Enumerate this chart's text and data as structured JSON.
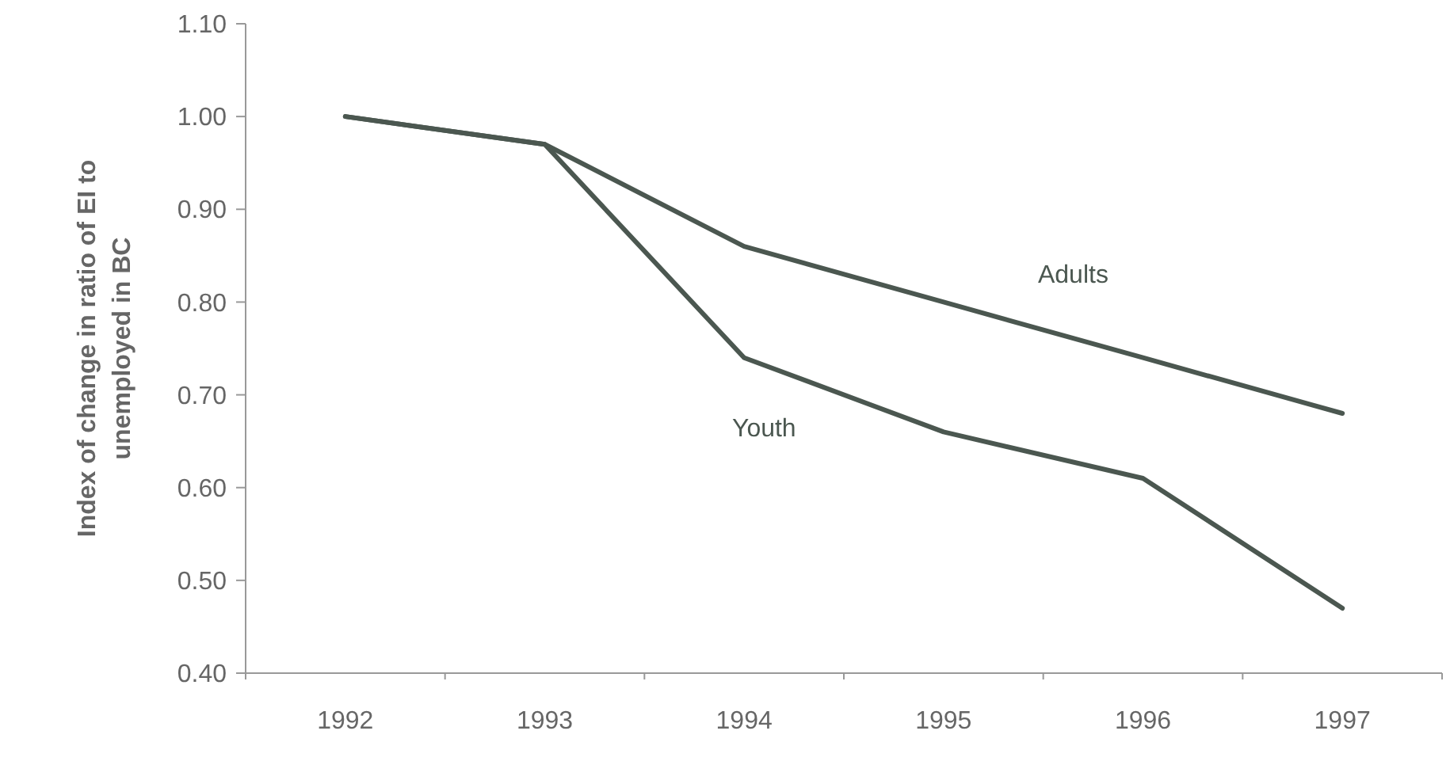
{
  "chart_data": {
    "type": "line",
    "ylabel": "Index of change in ratio of EI to unemployed in  BC",
    "categories": [
      "1992",
      "1993",
      "1994",
      "1995",
      "1996",
      "1997"
    ],
    "series": [
      {
        "name": "Adults",
        "color": "#4b5750",
        "values": [
          1.0,
          0.97,
          0.86,
          0.8,
          0.74,
          0.68
        ]
      },
      {
        "name": "Youth",
        "color": "#4b5750",
        "values": [
          1.0,
          0.97,
          0.74,
          0.66,
          0.61,
          0.47
        ]
      }
    ],
    "ylim": [
      0.4,
      1.1
    ],
    "yticks": [
      {
        "value": 0.4,
        "label": "0.40"
      },
      {
        "value": 0.5,
        "label": "0.50"
      },
      {
        "value": 0.6,
        "label": "0.60"
      },
      {
        "value": 0.7,
        "label": "0.70"
      },
      {
        "value": 0.8,
        "label": "0.80"
      },
      {
        "value": 0.9,
        "label": "0.90"
      },
      {
        "value": 1.0,
        "label": "1.00"
      },
      {
        "value": 1.1,
        "label": "1.10"
      }
    ],
    "grid": false,
    "marker": "none",
    "line_style": "solid"
  }
}
